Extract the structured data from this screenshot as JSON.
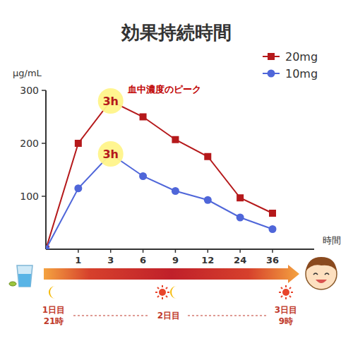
{
  "chart_data": {
    "type": "line",
    "title": "効果持続時間",
    "y_label": "μg/mL",
    "x_label": "時間",
    "categories": [
      null,
      "1",
      "3",
      "6",
      "9",
      "12",
      "24",
      "36"
    ],
    "series": [
      {
        "name": "20mg",
        "color": "#b5191b",
        "marker": "square",
        "values": [
          0,
          200,
          280,
          250,
          207,
          175,
          97,
          68
        ]
      },
      {
        "name": "10mg",
        "color": "#4f66d9",
        "marker": "circle",
        "values": [
          0,
          115,
          180,
          138,
          110,
          93,
          60,
          38
        ]
      }
    ],
    "ylim": [
      0,
      300
    ],
    "yticks": [
      100,
      200,
      300
    ],
    "grid": false,
    "legend": "top-right",
    "annotations": [
      {
        "text": "3h",
        "series": "20mg",
        "category": "3",
        "note": "血中濃度のピーク"
      },
      {
        "text": "3h",
        "series": "10mg",
        "category": "3"
      }
    ]
  },
  "timeline": {
    "start": [
      "1日目",
      "21時"
    ],
    "middle": "2日目",
    "end": [
      "3日目",
      "9時"
    ]
  }
}
